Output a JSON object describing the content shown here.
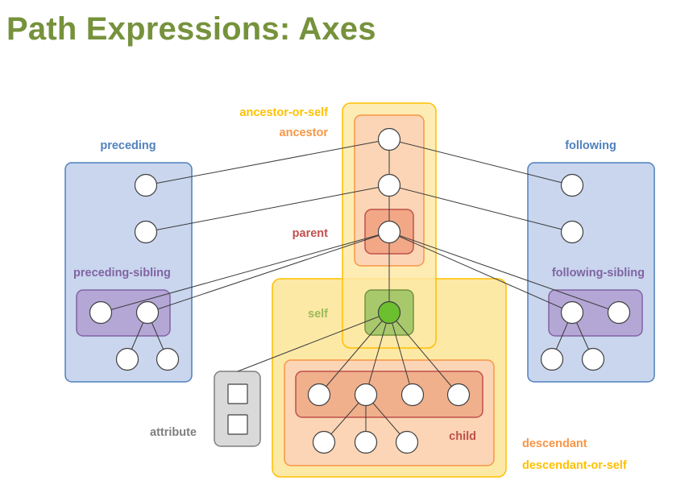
{
  "title": "Path Expressions: Axes",
  "colors": {
    "title": "#76923c",
    "blue": "#4f81bd",
    "purple": "#8064a2",
    "orange": "#f79646",
    "red": "#c0504d",
    "gold": "#ffc000",
    "green": "#9bbb59",
    "gray": "#7f7f7f"
  },
  "labels": {
    "ancestor_or_self": "ancestor-or-self",
    "ancestor": "ancestor",
    "preceding": "preceding",
    "following": "following",
    "parent": "parent",
    "preceding_sibling": "preceding-sibling",
    "following_sibling": "following-sibling",
    "self": "self",
    "attribute": "attribute",
    "child": "child",
    "descendant": "descendant",
    "descendant_or_self": "descendant-or-self"
  }
}
